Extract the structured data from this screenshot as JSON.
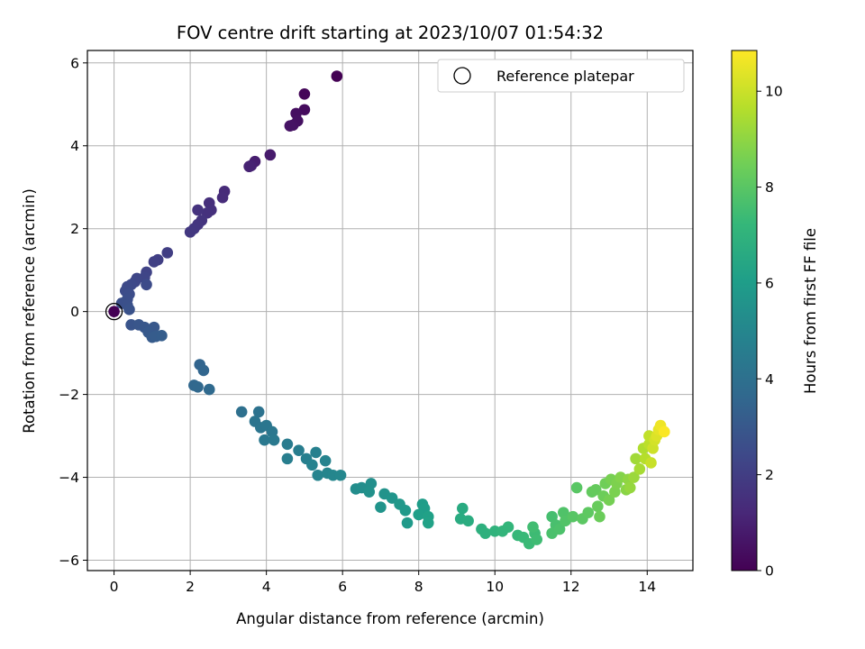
{
  "chart_data": {
    "type": "scatter",
    "title": "FOV centre drift starting at 2023/10/07 01:54:32",
    "xlabel": "Angular distance from reference (arcmin)",
    "ylabel": "Rotation from reference (arcmin)",
    "xlim": [
      -0.7,
      15.2
    ],
    "ylim": [
      -6.25,
      6.3
    ],
    "xticks": [
      0,
      2,
      4,
      6,
      8,
      10,
      12,
      14
    ],
    "yticks": [
      -6,
      -4,
      -2,
      0,
      2,
      4,
      6
    ],
    "grid": true,
    "legend": {
      "position": "top-right",
      "entries": [
        "Reference platepar"
      ]
    },
    "reference_point": {
      "x": 0,
      "y": 0
    },
    "colorbar": {
      "label": "Hours from first FF file",
      "min": 0,
      "max": 10.85,
      "ticks": [
        0,
        2,
        4,
        6,
        8,
        10
      ],
      "colormap": [
        "#440154",
        "#482878",
        "#3e4989",
        "#31688e",
        "#26828e",
        "#1f9e89",
        "#35b779",
        "#6ece58",
        "#b5de2b",
        "#fde725"
      ]
    },
    "series": [
      {
        "points": [
          {
            "x": 5.85,
            "y": 5.68,
            "c": 0.0
          },
          {
            "x": 5.0,
            "y": 5.25,
            "c": 0.15
          },
          {
            "x": 5.0,
            "y": 4.87,
            "c": 0.3
          },
          {
            "x": 4.78,
            "y": 4.78,
            "c": 0.4
          },
          {
            "x": 4.82,
            "y": 4.6,
            "c": 0.45
          },
          {
            "x": 4.7,
            "y": 4.5,
            "c": 0.5
          },
          {
            "x": 4.62,
            "y": 4.48,
            "c": 0.55
          },
          {
            "x": 4.1,
            "y": 3.78,
            "c": 0.8
          },
          {
            "x": 3.7,
            "y": 3.62,
            "c": 0.9
          },
          {
            "x": 3.6,
            "y": 3.52,
            "c": 1.0
          },
          {
            "x": 3.55,
            "y": 3.5,
            "c": 1.05
          },
          {
            "x": 2.9,
            "y": 2.9,
            "c": 1.3
          },
          {
            "x": 2.85,
            "y": 2.75,
            "c": 1.35
          },
          {
            "x": 2.5,
            "y": 2.62,
            "c": 1.45
          },
          {
            "x": 2.55,
            "y": 2.45,
            "c": 1.5
          },
          {
            "x": 2.45,
            "y": 2.38,
            "c": 1.55
          },
          {
            "x": 2.2,
            "y": 2.45,
            "c": 1.6
          },
          {
            "x": 2.3,
            "y": 2.2,
            "c": 1.65
          },
          {
            "x": 2.2,
            "y": 2.1,
            "c": 1.7
          },
          {
            "x": 2.1,
            "y": 2.0,
            "c": 1.75
          },
          {
            "x": 2.0,
            "y": 1.92,
            "c": 1.8
          },
          {
            "x": 1.4,
            "y": 1.42,
            "c": 2.0
          },
          {
            "x": 1.15,
            "y": 1.25,
            "c": 2.05
          },
          {
            "x": 1.05,
            "y": 1.2,
            "c": 2.1
          },
          {
            "x": 0.85,
            "y": 0.95,
            "c": 2.2
          },
          {
            "x": 0.8,
            "y": 0.82,
            "c": 2.25
          },
          {
            "x": 0.6,
            "y": 0.8,
            "c": 2.3
          },
          {
            "x": 0.55,
            "y": 0.72,
            "c": 2.35
          },
          {
            "x": 0.45,
            "y": 0.65,
            "c": 2.4
          },
          {
            "x": 0.35,
            "y": 0.6,
            "c": 2.45
          },
          {
            "x": 0.85,
            "y": 0.65,
            "c": 2.5
          },
          {
            "x": 0.3,
            "y": 0.5,
            "c": 2.5
          },
          {
            "x": 0.4,
            "y": 0.42,
            "c": 2.55
          },
          {
            "x": 0.35,
            "y": 0.3,
            "c": 2.6
          },
          {
            "x": 0.2,
            "y": 0.2,
            "c": 2.65
          },
          {
            "x": 0.35,
            "y": 0.15,
            "c": 2.7
          },
          {
            "x": 0.4,
            "y": 0.05,
            "c": 2.75
          },
          {
            "x": 0.45,
            "y": -0.32,
            "c": 2.85
          },
          {
            "x": 0.65,
            "y": -0.32,
            "c": 2.9
          },
          {
            "x": 0.8,
            "y": -0.38,
            "c": 2.95
          },
          {
            "x": 1.05,
            "y": -0.38,
            "c": 3.0
          },
          {
            "x": 0.9,
            "y": -0.5,
            "c": 3.05
          },
          {
            "x": 1.0,
            "y": -0.62,
            "c": 3.1
          },
          {
            "x": 1.1,
            "y": -0.6,
            "c": 3.15
          },
          {
            "x": 1.25,
            "y": -0.58,
            "c": 3.2
          },
          {
            "x": 2.25,
            "y": -1.28,
            "c": 3.5
          },
          {
            "x": 2.35,
            "y": -1.42,
            "c": 3.55
          },
          {
            "x": 2.1,
            "y": -1.78,
            "c": 3.6
          },
          {
            "x": 2.2,
            "y": -1.82,
            "c": 3.65
          },
          {
            "x": 2.5,
            "y": -1.88,
            "c": 3.7
          },
          {
            "x": 3.35,
            "y": -2.42,
            "c": 4.0
          },
          {
            "x": 3.8,
            "y": -2.42,
            "c": 4.1
          },
          {
            "x": 3.7,
            "y": -2.65,
            "c": 4.15
          },
          {
            "x": 3.85,
            "y": -2.8,
            "c": 4.2
          },
          {
            "x": 4.0,
            "y": -2.75,
            "c": 4.25
          },
          {
            "x": 4.15,
            "y": -2.9,
            "c": 4.3
          },
          {
            "x": 3.95,
            "y": -3.1,
            "c": 4.35
          },
          {
            "x": 4.2,
            "y": -3.1,
            "c": 4.4
          },
          {
            "x": 4.55,
            "y": -3.2,
            "c": 4.5
          },
          {
            "x": 4.85,
            "y": -3.35,
            "c": 4.6
          },
          {
            "x": 4.55,
            "y": -3.55,
            "c": 4.65
          },
          {
            "x": 5.05,
            "y": -3.55,
            "c": 4.7
          },
          {
            "x": 5.3,
            "y": -3.4,
            "c": 4.75
          },
          {
            "x": 5.2,
            "y": -3.7,
            "c": 4.8
          },
          {
            "x": 5.55,
            "y": -3.6,
            "c": 4.85
          },
          {
            "x": 5.35,
            "y": -3.95,
            "c": 4.9
          },
          {
            "x": 5.6,
            "y": -3.9,
            "c": 4.95
          },
          {
            "x": 5.75,
            "y": -3.95,
            "c": 5.0
          },
          {
            "x": 5.95,
            "y": -3.95,
            "c": 5.05
          },
          {
            "x": 6.35,
            "y": -4.28,
            "c": 5.3
          },
          {
            "x": 6.5,
            "y": -4.25,
            "c": 5.35
          },
          {
            "x": 6.75,
            "y": -4.15,
            "c": 5.4
          },
          {
            "x": 6.7,
            "y": -4.35,
            "c": 5.45
          },
          {
            "x": 7.1,
            "y": -4.4,
            "c": 5.55
          },
          {
            "x": 7.0,
            "y": -4.72,
            "c": 5.6
          },
          {
            "x": 7.3,
            "y": -4.5,
            "c": 5.65
          },
          {
            "x": 7.5,
            "y": -4.65,
            "c": 5.75
          },
          {
            "x": 7.65,
            "y": -4.8,
            "c": 5.8
          },
          {
            "x": 7.7,
            "y": -5.1,
            "c": 5.85
          },
          {
            "x": 8.1,
            "y": -4.65,
            "c": 6.0
          },
          {
            "x": 8.15,
            "y": -4.75,
            "c": 6.05
          },
          {
            "x": 8.0,
            "y": -4.9,
            "c": 6.1
          },
          {
            "x": 8.25,
            "y": -4.95,
            "c": 6.15
          },
          {
            "x": 8.25,
            "y": -5.1,
            "c": 6.2
          },
          {
            "x": 9.15,
            "y": -4.75,
            "c": 6.6
          },
          {
            "x": 9.1,
            "y": -5.0,
            "c": 6.65
          },
          {
            "x": 9.3,
            "y": -5.05,
            "c": 6.7
          },
          {
            "x": 9.65,
            "y": -5.25,
            "c": 6.85
          },
          {
            "x": 9.75,
            "y": -5.35,
            "c": 6.9
          },
          {
            "x": 10.0,
            "y": -5.3,
            "c": 7.0
          },
          {
            "x": 10.2,
            "y": -5.3,
            "c": 7.1
          },
          {
            "x": 10.35,
            "y": -5.2,
            "c": 7.15
          },
          {
            "x": 10.6,
            "y": -5.4,
            "c": 7.25
          },
          {
            "x": 10.75,
            "y": -5.45,
            "c": 7.3
          },
          {
            "x": 10.9,
            "y": -5.6,
            "c": 7.35
          },
          {
            "x": 11.05,
            "y": -5.35,
            "c": 7.4
          },
          {
            "x": 11.1,
            "y": -5.5,
            "c": 7.45
          },
          {
            "x": 11.0,
            "y": -5.2,
            "c": 7.5
          },
          {
            "x": 11.5,
            "y": -4.95,
            "c": 7.6
          },
          {
            "x": 11.6,
            "y": -5.15,
            "c": 7.65
          },
          {
            "x": 11.5,
            "y": -5.35,
            "c": 7.7
          },
          {
            "x": 11.7,
            "y": -5.25,
            "c": 7.75
          },
          {
            "x": 11.8,
            "y": -4.85,
            "c": 7.8
          },
          {
            "x": 11.85,
            "y": -5.05,
            "c": 7.85
          },
          {
            "x": 12.05,
            "y": -4.95,
            "c": 7.95
          },
          {
            "x": 12.15,
            "y": -4.25,
            "c": 8.0
          },
          {
            "x": 12.3,
            "y": -5.0,
            "c": 8.05
          },
          {
            "x": 12.45,
            "y": -4.85,
            "c": 8.1
          },
          {
            "x": 12.55,
            "y": -4.35,
            "c": 8.2
          },
          {
            "x": 12.65,
            "y": -4.3,
            "c": 8.25
          },
          {
            "x": 12.7,
            "y": -4.7,
            "c": 8.3
          },
          {
            "x": 12.75,
            "y": -4.95,
            "c": 8.35
          },
          {
            "x": 12.85,
            "y": -4.45,
            "c": 8.4
          },
          {
            "x": 12.9,
            "y": -4.15,
            "c": 8.45
          },
          {
            "x": 13.0,
            "y": -4.55,
            "c": 8.55
          },
          {
            "x": 13.05,
            "y": -4.05,
            "c": 8.6
          },
          {
            "x": 13.15,
            "y": -4.35,
            "c": 8.65
          },
          {
            "x": 13.2,
            "y": -4.15,
            "c": 8.7
          },
          {
            "x": 13.3,
            "y": -4.0,
            "c": 8.8
          },
          {
            "x": 13.45,
            "y": -4.3,
            "c": 8.9
          },
          {
            "x": 13.5,
            "y": -4.05,
            "c": 9.0
          },
          {
            "x": 13.55,
            "y": -4.25,
            "c": 9.1
          },
          {
            "x": 13.65,
            "y": -4.0,
            "c": 9.2
          },
          {
            "x": 13.7,
            "y": -3.55,
            "c": 9.3
          },
          {
            "x": 13.8,
            "y": -3.8,
            "c": 9.4
          },
          {
            "x": 13.9,
            "y": -3.3,
            "c": 9.55
          },
          {
            "x": 13.95,
            "y": -3.55,
            "c": 9.65
          },
          {
            "x": 14.05,
            "y": -3.2,
            "c": 9.75
          },
          {
            "x": 14.05,
            "y": -3.0,
            "c": 9.85
          },
          {
            "x": 14.1,
            "y": -3.65,
            "c": 9.95
          },
          {
            "x": 14.15,
            "y": -3.3,
            "c": 10.05
          },
          {
            "x": 14.2,
            "y": -3.1,
            "c": 10.15
          },
          {
            "x": 14.25,
            "y": -3.0,
            "c": 10.3
          },
          {
            "x": 14.3,
            "y": -2.85,
            "c": 10.45
          },
          {
            "x": 14.35,
            "y": -2.75,
            "c": 10.6
          },
          {
            "x": 14.45,
            "y": -2.9,
            "c": 10.8
          }
        ]
      }
    ]
  }
}
